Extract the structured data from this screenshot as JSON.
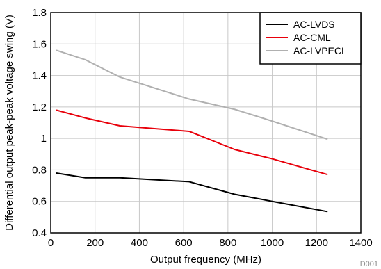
{
  "chart_data": {
    "type": "line",
    "xlabel": "Output frequency (MHz)",
    "ylabel": "Differential output peak-peak voltage swing (V)",
    "xlim": [
      0,
      1400
    ],
    "ylim": [
      0.4,
      1.8
    ],
    "xticks": [
      0,
      200,
      400,
      600,
      800,
      1000,
      1200,
      1400
    ],
    "yticks": [
      0.4,
      0.6,
      0.8,
      1,
      1.2,
      1.4,
      1.6,
      1.8
    ],
    "xtick_labels": [
      "0",
      "200",
      "400",
      "600",
      "800",
      "1000",
      "1200",
      "1400"
    ],
    "ytick_labels": [
      "0.4",
      "0.6",
      "0.8",
      "1",
      "1.2",
      "1.4",
      "1.6",
      "1.8"
    ],
    "grid": true,
    "legend_position": "top-right",
    "figure_id": "D001",
    "series": [
      {
        "name": "AC-LVDS",
        "color": "#000000",
        "x": [
          25,
          156,
          312,
          625,
          830,
          1000,
          1250
        ],
        "y": [
          0.78,
          0.75,
          0.75,
          0.725,
          0.645,
          0.6,
          0.535
        ]
      },
      {
        "name": "AC-CML",
        "color": "#e8000b",
        "x": [
          25,
          156,
          312,
          625,
          830,
          1000,
          1250
        ],
        "y": [
          1.18,
          1.13,
          1.08,
          1.045,
          0.93,
          0.87,
          0.77
        ]
      },
      {
        "name": "AC-LVPECL",
        "color": "#b0b0b0",
        "x": [
          25,
          156,
          312,
          625,
          830,
          1000,
          1250
        ],
        "y": [
          1.56,
          1.5,
          1.39,
          1.25,
          1.185,
          1.11,
          0.995
        ]
      }
    ]
  }
}
